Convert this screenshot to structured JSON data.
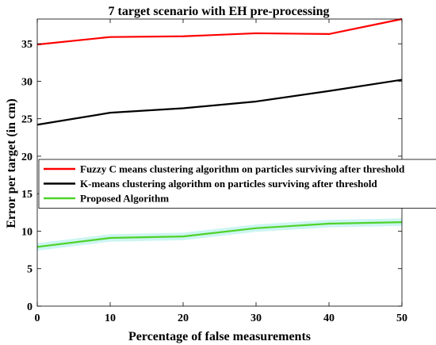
{
  "chart_data": {
    "type": "line",
    "title": "7 target scenario with EH pre-processing",
    "xlabel": "Percentage of false measurements",
    "ylabel": "Error per target (in cm)",
    "xlim": [
      0,
      50
    ],
    "ylim": [
      0,
      38.3
    ],
    "xticks": [
      0,
      10,
      20,
      30,
      40,
      50
    ],
    "yticks": [
      0,
      5,
      10,
      15,
      20,
      25,
      30,
      35
    ],
    "grid": false,
    "legend_position": "center",
    "x": [
      0,
      10,
      20,
      30,
      40,
      50
    ],
    "series": [
      {
        "name": "Fuzzy C means clustering algorithm on particles surviving after threshold",
        "color": "#ff0000",
        "values": [
          34.9,
          35.9,
          36.0,
          36.4,
          36.3,
          38.3
        ]
      },
      {
        "name": "K-means clustering algorithm on particles surviving after threshold",
        "color": "#000000",
        "values": [
          24.2,
          25.8,
          26.4,
          27.3,
          28.7,
          30.2
        ]
      },
      {
        "name": "Proposed Algorithm",
        "color": "#4fd22a",
        "band_color": "#cdf5f2",
        "values": [
          7.9,
          9.1,
          9.3,
          10.4,
          11.0,
          11.2
        ]
      }
    ]
  }
}
